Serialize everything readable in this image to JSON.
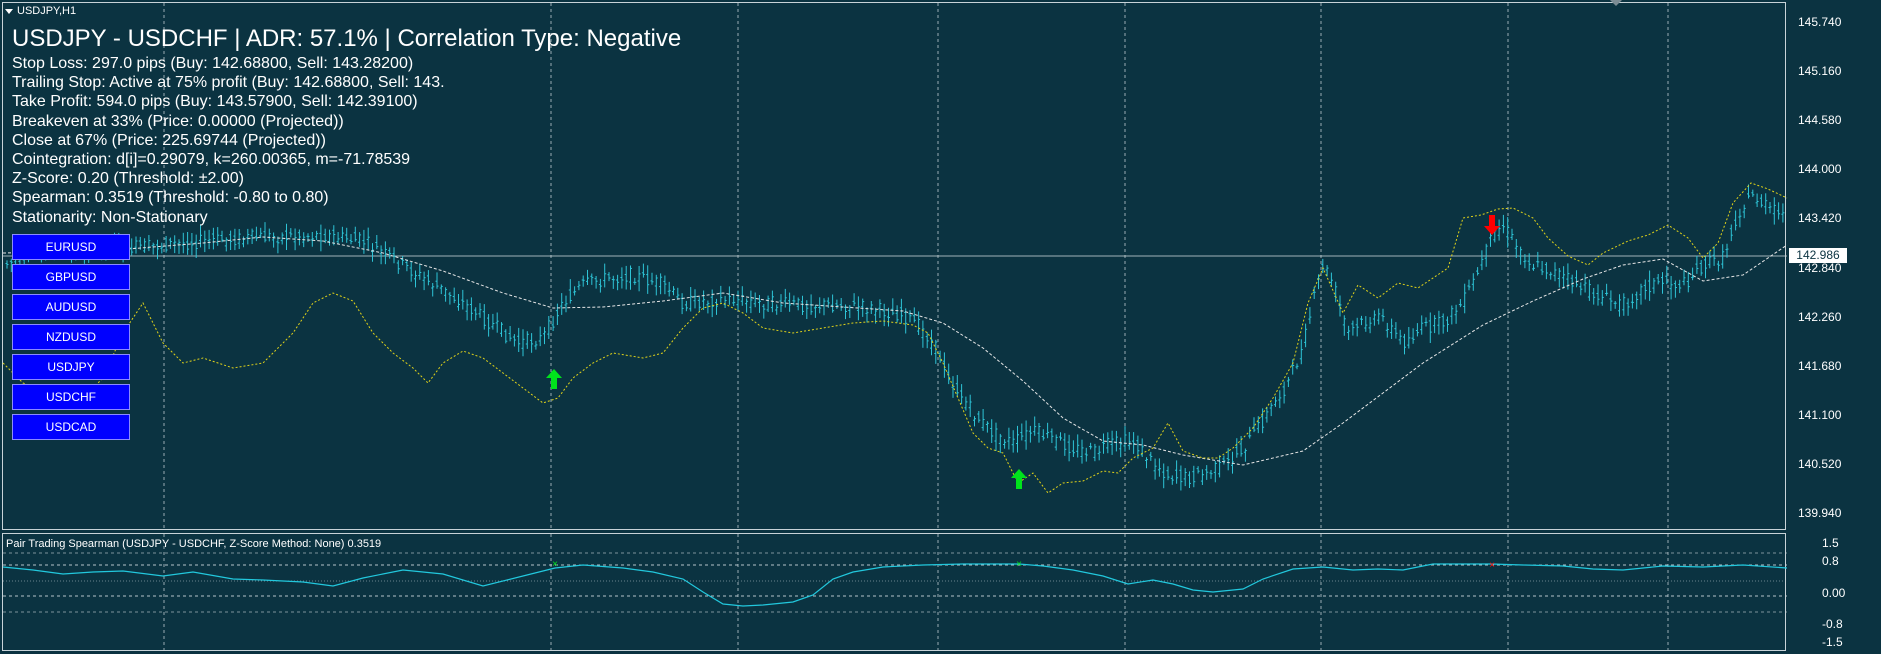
{
  "window": {
    "tab_label": "USDJPY,H1"
  },
  "title": "USDJPY - USDCHF | ADR: 57.1% | Correlation Type: Negative",
  "info_lines": [
    "Stop Loss: 297.0 pips (Buy: 142.68800, Sell: 143.28200)",
    "Trailing Stop: Active at 75% profit (Buy: 142.68800, Sell: 143.",
    "Take Profit: 594.0 pips (Buy: 143.57900, Sell: 142.39100)",
    "Breakeven at 33% (Price: 0.00000 (Projected))",
    "Close at 67% (Price: 225.69744 (Projected))",
    "Cointegration: d[i]=0.29079, k=260.00365, m=-71.78539",
    "Z-Score: 0.20 (Threshold: ±2.00)",
    "Spearman: 0.3519 (Threshold: -0.80 to 0.80)",
    "Stationarity: Non-Stationary"
  ],
  "symbol_buttons": [
    "EURUSD",
    "GBPUSD",
    "AUDUSD",
    "NZDUSD",
    "USDJPY",
    "USDCHF",
    "USDCAD"
  ],
  "price_scale": [
    "145.740",
    "145.160",
    "144.580",
    "144.000",
    "143.420",
    "142.840",
    "142.260",
    "141.680",
    "141.100",
    "140.520",
    "139.940"
  ],
  "current_price": "142.986",
  "indicator": {
    "label": "Pair Trading Spearman (USDJPY - USDCHF, Z-Score Method: None) 0.3519",
    "scale": [
      "1.5",
      "0.8",
      "0.00",
      "-0.8",
      "-1.5"
    ]
  },
  "colors": {
    "background": "#0b3341",
    "candles": "#2ec4d6",
    "ma_line": "#e6e6e6",
    "pair_line": "#e0d21a",
    "buy_arrow": "#00e31c",
    "sell_arrow": "#ff0000",
    "spearman_line": "#22c8dd",
    "grid": "#c8d3d8",
    "button_fill": "#0000ff"
  },
  "icons": {
    "buy_signal": "up-arrow-icon",
    "sell_signal": "down-arrow-icon",
    "window_menu": "triangle-down-icon"
  }
}
